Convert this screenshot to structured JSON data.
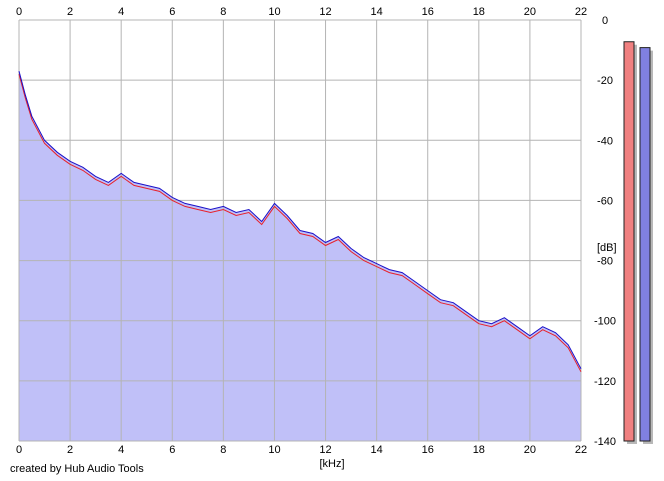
{
  "credit": "created by Hub Audio Tools",
  "chart_data": {
    "type": "area",
    "xlabel": "[kHz]",
    "ylabel": "[dB]",
    "xlim": [
      0,
      22
    ],
    "ylim": [
      -140,
      0
    ],
    "x_ticks": [
      0,
      2,
      4,
      6,
      8,
      10,
      12,
      14,
      16,
      18,
      20,
      22
    ],
    "y_ticks": [
      0,
      -20,
      -40,
      -60,
      -80,
      -100,
      -120,
      -140
    ],
    "grid": true,
    "fill_color": "#c0c0f8",
    "background_color": "#ffffff",
    "colors": {
      "left": "#e8202a",
      "right": "#1a10c8",
      "grid": "#b4b4b4"
    },
    "series": [
      {
        "color": "#e8202a",
        "x": [
          0,
          0.25,
          0.5,
          1,
          1.5,
          2,
          2.5,
          3,
          3.5,
          4,
          4.5,
          5,
          5.5,
          6,
          6.5,
          7,
          7.5,
          8,
          8.5,
          9,
          9.5,
          10,
          10.5,
          11,
          11.5,
          12,
          12.5,
          13,
          13.5,
          14,
          14.5,
          15,
          15.5,
          16,
          16.5,
          17,
          17.5,
          18,
          18.5,
          19,
          19.5,
          20,
          20.5,
          21,
          21.5,
          22
        ],
        "values": [
          -18,
          -26,
          -33,
          -41,
          -45,
          -48,
          -50,
          -53,
          -55,
          -52,
          -55,
          -56,
          -57,
          -60,
          -62,
          -63,
          -64,
          -63,
          -65,
          -64,
          -68,
          -62,
          -66,
          -71,
          -72,
          -75,
          -73,
          -77,
          -80,
          -82,
          -84,
          -85,
          -88,
          -91,
          -94,
          -95,
          -98,
          -101,
          -102,
          -100,
          -103,
          -106,
          -103,
          -105,
          -109,
          -117
        ]
      },
      {
        "color": "#1a10c8",
        "x": [
          0,
          0.25,
          0.5,
          1,
          1.5,
          2,
          2.5,
          3,
          3.5,
          4,
          4.5,
          5,
          5.5,
          6,
          6.5,
          7,
          7.5,
          8,
          8.5,
          9,
          9.5,
          10,
          10.5,
          11,
          11.5,
          12,
          12.5,
          13,
          13.5,
          14,
          14.5,
          15,
          15.5,
          16,
          16.5,
          17,
          17.5,
          18,
          18.5,
          19,
          19.5,
          20,
          20.5,
          21,
          21.5,
          22
        ],
        "values": [
          -17,
          -25,
          -32,
          -40,
          -44,
          -47,
          -49,
          -52,
          -54,
          -51,
          -54,
          -55,
          -56,
          -59,
          -61,
          -62,
          -63,
          -62,
          -64,
          -63,
          -67,
          -61,
          -65,
          -70,
          -71,
          -74,
          -72,
          -76,
          -79,
          -81,
          -83,
          -84,
          -87,
          -90,
          -93,
          -94,
          -97,
          -100,
          -101,
          -99,
          -102,
          -105,
          -102,
          -104,
          -108,
          -116
        ]
      }
    ],
    "meters": {
      "min": -140,
      "max": 0,
      "left_level": -4,
      "right_level": -6
    }
  }
}
